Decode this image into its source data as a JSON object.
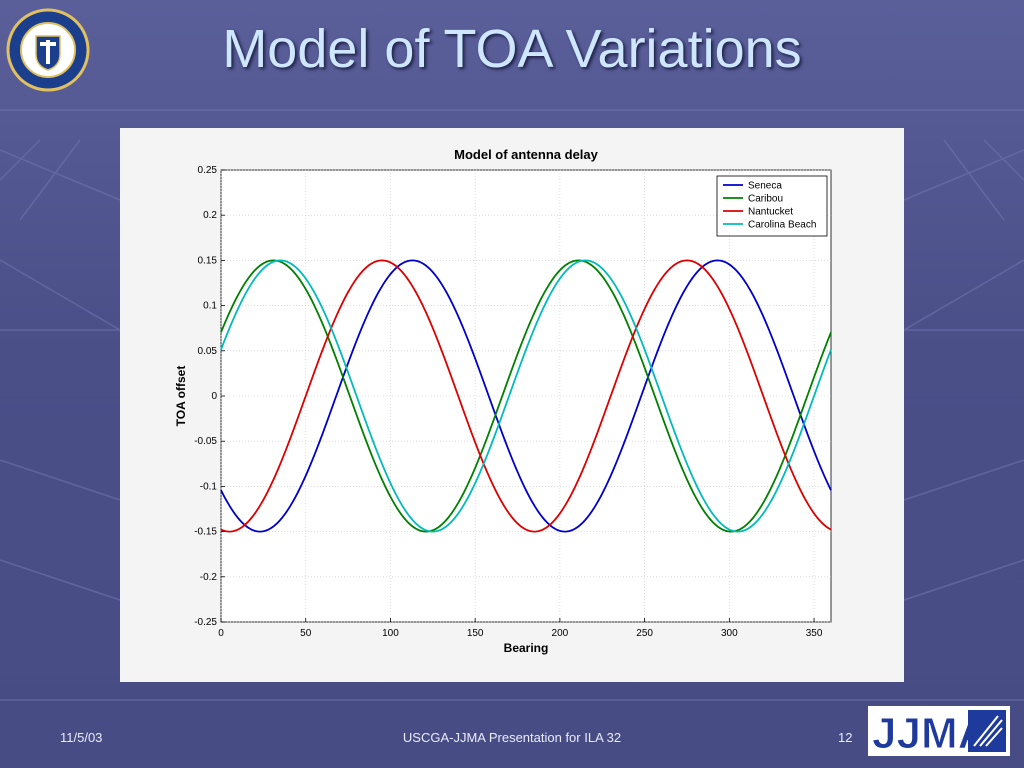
{
  "slide": {
    "title": "Model of TOA Variations",
    "footer_date": "11/5/03",
    "footer_center": "USCGA-JJMA Presentation for ILA 32",
    "page_number": "12",
    "seal_text": "UNITED STATES COAST GUARD ACADEMY",
    "logo_text": "JJMA"
  },
  "chart_data": {
    "type": "line",
    "title": "Model of antenna delay",
    "xlabel": "Bearing",
    "ylabel": "TOA offset",
    "xlim": [
      0,
      360
    ],
    "ylim": [
      -0.25,
      0.25
    ],
    "xticks": [
      0,
      50,
      100,
      150,
      200,
      250,
      300,
      350
    ],
    "xtick_labels": [
      "0",
      "50",
      "100",
      "150",
      "200",
      "250",
      "300",
      "350"
    ],
    "yticks": [
      0.25,
      0.2,
      0.15,
      0.1,
      0.05,
      0,
      -0.05,
      -0.1,
      -0.15,
      -0.2,
      -0.25
    ],
    "ytick_labels": [
      "0.25",
      "0.2",
      "0.15",
      "0.1",
      "0.05",
      "0",
      "-0.05",
      "-0.1",
      "-0.15",
      "-0.2",
      "-0.25"
    ],
    "grid": true,
    "legend_position": "top-right",
    "amplitude": 0.15,
    "period": 180,
    "series": [
      {
        "name": "Seneca",
        "color": "#0000cc",
        "peak_bearing": 113
      },
      {
        "name": "Caribou",
        "color": "#008000",
        "peak_bearing": 31
      },
      {
        "name": "Nantucket",
        "color": "#dd0000",
        "peak_bearing": 95
      },
      {
        "name": "Carolina Beach",
        "color": "#00bbbb",
        "peak_bearing": 35
      }
    ]
  }
}
